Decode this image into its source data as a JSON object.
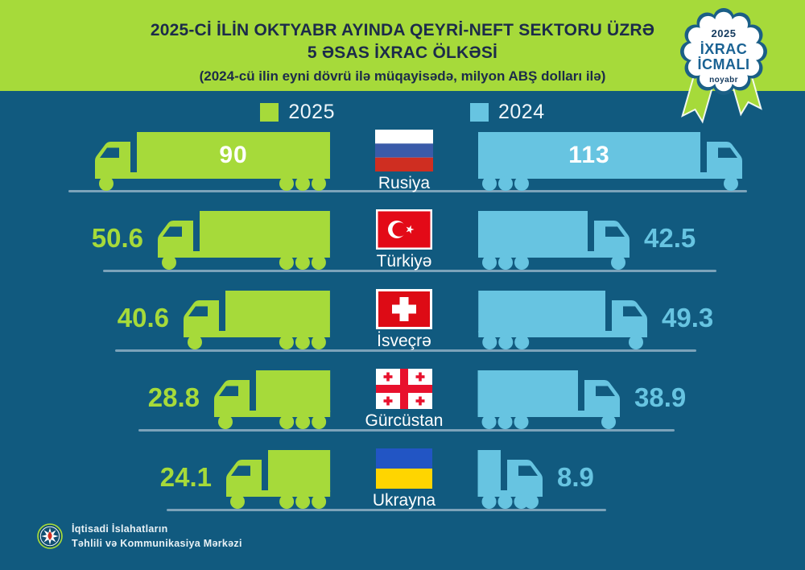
{
  "header": {
    "title_line1": "2025-Cİ İLİN OKTYABR AYINDA QEYRİ-NEFT SEKTORU ÜZRƏ",
    "title_line2": "5 ƏSAS İXRAC ÖLKƏSİ",
    "subtitle": "(2024-cü ilin eyni dövrü ilə müqayisədə, milyon ABŞ dolları ilə)"
  },
  "badge": {
    "year": "2025",
    "line1": "İXRAC",
    "line2": "İCMALI",
    "month": "noyabr"
  },
  "footer": {
    "line1": "İqtisadi İslahatların",
    "line2": "Təhlili və Kommunikasiya Mərkəzi"
  },
  "colors": {
    "background": "#115a7f",
    "header_green": "#a6da3a",
    "series_2025": "#a6da3a",
    "series_2024": "#67c4e1",
    "title_navy": "#1c2b4a",
    "road": "#7ca3ba"
  },
  "chart_data": {
    "type": "bar",
    "variant": "horizontal-pictogram-trucks",
    "title": "2025-ci ilin oktyabr ayında qeyri-neft sektoru üzrə 5 əsas ixrac ölkəsi",
    "subtitle": "2024-cü ilin eyni dövrü ilə müqayisədə",
    "unit": "milyon ABŞ dolları",
    "legend_position": "top",
    "categories": [
      "Rusiya",
      "Türkiyə",
      "İsveçrə",
      "Gürcüstan",
      "Ukrayna"
    ],
    "flags": [
      "russia-flag-icon",
      "turkey-flag-icon",
      "switzerland-flag-icon",
      "georgia-flag-icon",
      "ukraine-flag-icon"
    ],
    "series": [
      {
        "name": "2025",
        "color": "#a6da3a",
        "values": [
          90,
          50.6,
          40.6,
          28.8,
          24.1
        ]
      },
      {
        "name": "2024",
        "color": "#67c4e1",
        "values": [
          113,
          42.5,
          49.3,
          38.9,
          8.9
        ]
      }
    ]
  }
}
